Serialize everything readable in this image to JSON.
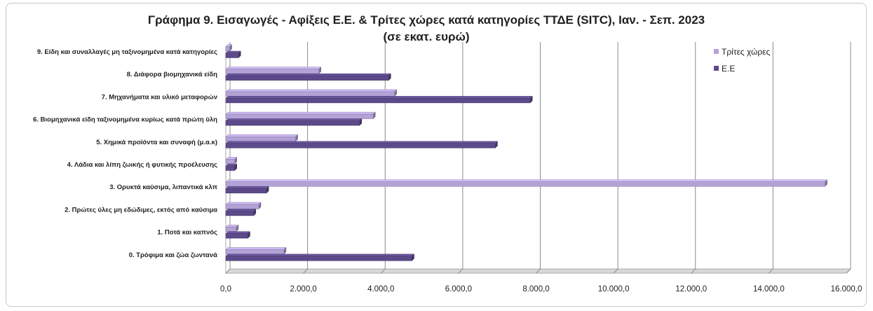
{
  "chart_data": {
    "type": "bar",
    "orientation": "horizontal",
    "title": "Γράφημα  9. Εισαγωγές - Αφίξεις Ε.Ε. & Τρίτες χώρες κατά κατηγορίες ΤΤΔΕ (SITC), Ιαν. -  Σεπ. 2023",
    "subtitle": "(σε εκατ. ευρώ)",
    "categories": [
      "9. Είδη και συναλλαγές μη ταξινομημένα κατά  κατηγορίες",
      "8. Διάφορα βιομηχανικά είδη",
      "7. Μηχανήματα και υλικό μεταφορών",
      "6. Βιομηχανικά είδη ταξινομημένα κυρίως κατά πρώτη ύλη",
      "5. Χημικά προϊόντα και συναφή (μ.α.κ)",
      "4. Λάδια και λίπη ζωικής ή φυτικής προέλευσης",
      "3. Ορυκτά καύσιμα, λιπαντικά κλπ",
      "2. Πρώτες ύλες μη εδώδιμες, εκτός από καύσιμα",
      "1. Ποτά και καπνός",
      "0. Τρόφιμα και ζώα ζωντανά"
    ],
    "series": [
      {
        "name": "Τρίτες χώρες",
        "color": "#b3a2d6",
        "values": [
          100,
          2400,
          4350,
          3800,
          1800,
          230,
          15450,
          850,
          270,
          1500
        ]
      },
      {
        "name": "Ε.Ε",
        "color": "#5c4a8a",
        "values": [
          330,
          4200,
          7850,
          3450,
          6950,
          230,
          1050,
          720,
          570,
          4800
        ]
      }
    ],
    "xlim": [
      0,
      16000
    ],
    "xticks": [
      "0,0",
      "2.000,0",
      "4.000,0",
      "6.000,0",
      "8.000,0",
      "10.000,0",
      "12.000,0",
      "14.000,0",
      "16.000,0"
    ],
    "grid": true,
    "legend_position": "top-right"
  }
}
